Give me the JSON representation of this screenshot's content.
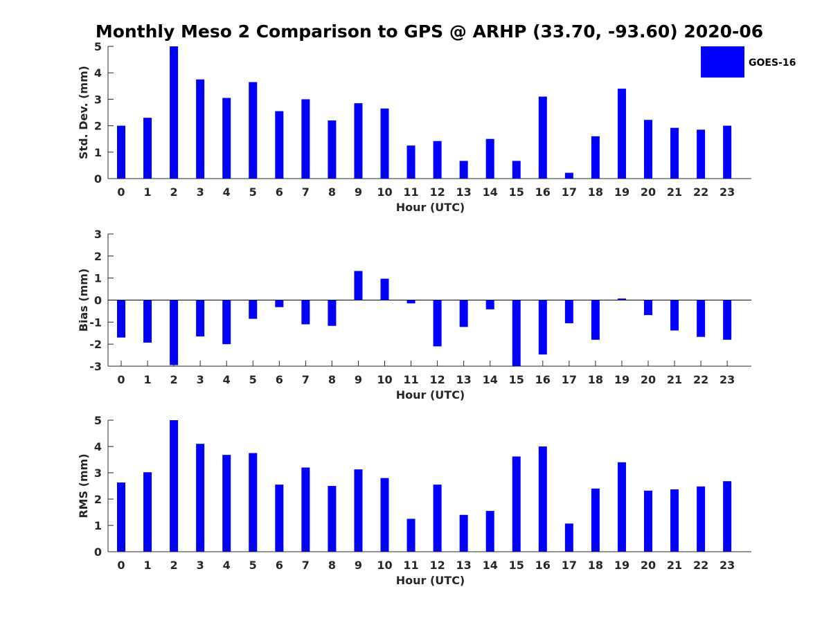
{
  "title": "Monthly Meso 2 Comparison to GPS @ ARHP (33.70, -93.60) 2020-06",
  "legend": {
    "label": "GOES-16",
    "color": "#0000ff",
    "placement": "top-right"
  },
  "chart_data": [
    {
      "type": "bar",
      "ylabel": "Std. Dev. (mm)",
      "xlabel": "Hour (UTC)",
      "ylim": [
        0,
        5
      ],
      "yticks": [
        0,
        1,
        2,
        3,
        4,
        5
      ],
      "categories": [
        "0",
        "1",
        "2",
        "3",
        "4",
        "5",
        "6",
        "7",
        "8",
        "9",
        "10",
        "11",
        "12",
        "13",
        "14",
        "15",
        "16",
        "17",
        "18",
        "19",
        "20",
        "21",
        "22",
        "23"
      ],
      "series": [
        {
          "name": "GOES-16",
          "values": [
            2.0,
            2.3,
            5.0,
            3.75,
            3.05,
            3.65,
            2.55,
            3.0,
            2.2,
            2.85,
            2.65,
            1.25,
            1.42,
            0.67,
            1.5,
            0.67,
            3.1,
            0.22,
            1.6,
            3.4,
            2.22,
            1.92,
            1.85,
            2.0
          ]
        }
      ],
      "bar_color": "#0000ff"
    },
    {
      "type": "bar",
      "ylabel": "Bias (mm)",
      "xlabel": "Hour (UTC)",
      "ylim": [
        -3,
        3
      ],
      "yticks": [
        -3,
        -2,
        -1,
        0,
        1,
        2,
        3
      ],
      "categories": [
        "0",
        "1",
        "2",
        "3",
        "4",
        "5",
        "6",
        "7",
        "8",
        "9",
        "10",
        "11",
        "12",
        "13",
        "14",
        "15",
        "16",
        "17",
        "18",
        "19",
        "20",
        "21",
        "22",
        "23"
      ],
      "series": [
        {
          "name": "GOES-16",
          "values": [
            -1.7,
            -1.93,
            -2.95,
            -1.65,
            -2.0,
            -0.85,
            -0.32,
            -1.1,
            -1.17,
            1.32,
            0.97,
            -0.15,
            -2.1,
            -1.22,
            -0.42,
            -3.0,
            -2.47,
            -1.05,
            -1.8,
            0.07,
            -0.68,
            -1.38,
            -1.67,
            -1.8
          ]
        }
      ],
      "zero_line": true,
      "bar_color": "#0000ff"
    },
    {
      "type": "bar",
      "ylabel": "RMS (mm)",
      "xlabel": "Hour (UTC)",
      "ylim": [
        0,
        5
      ],
      "yticks": [
        0,
        1,
        2,
        3,
        4,
        5
      ],
      "categories": [
        "0",
        "1",
        "2",
        "3",
        "4",
        "5",
        "6",
        "7",
        "8",
        "9",
        "10",
        "11",
        "12",
        "13",
        "14",
        "15",
        "16",
        "17",
        "18",
        "19",
        "20",
        "21",
        "22",
        "23"
      ],
      "series": [
        {
          "name": "GOES-16",
          "values": [
            2.63,
            3.02,
            5.0,
            4.1,
            3.68,
            3.75,
            2.55,
            3.2,
            2.5,
            3.13,
            2.8,
            1.25,
            2.55,
            1.4,
            1.55,
            3.62,
            4.0,
            1.07,
            2.4,
            3.4,
            2.32,
            2.37,
            2.48,
            2.68
          ]
        }
      ],
      "bar_color": "#0000ff"
    }
  ]
}
